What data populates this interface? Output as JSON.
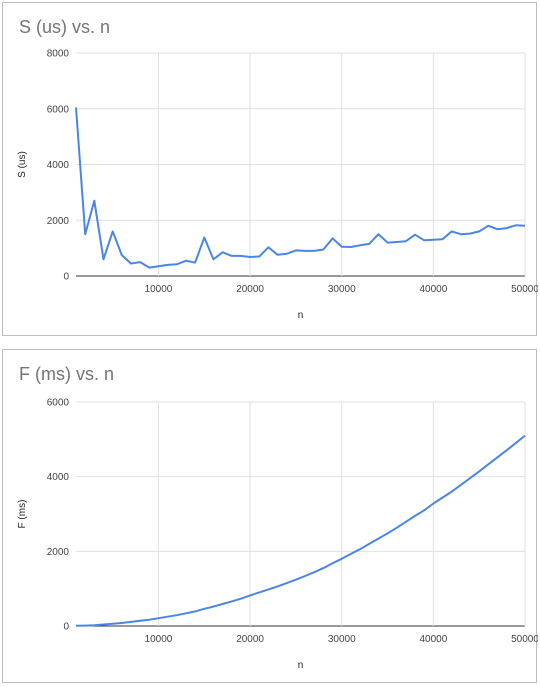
{
  "chart_data": [
    {
      "type": "line",
      "title": "S (us) vs. n",
      "xlabel": "n",
      "ylabel": "S (us)",
      "xlim": [
        1000,
        50000
      ],
      "ylim": [
        0,
        8000
      ],
      "xticks": [
        10000,
        20000,
        30000,
        40000,
        50000
      ],
      "yticks": [
        0,
        2000,
        4000,
        6000,
        8000
      ],
      "grid": true,
      "legend": "none",
      "color": "#4a86e8",
      "series": [
        {
          "x": [
            1000,
            2000,
            3000,
            4000,
            5000,
            6000,
            7000,
            8000,
            9000,
            10000,
            11000,
            12000,
            13000,
            14000,
            15000,
            16000,
            17000,
            18000,
            19000,
            20000,
            21000,
            22000,
            23000,
            24000,
            25000,
            26000,
            27000,
            28000,
            29000,
            30000,
            31000,
            32000,
            33000,
            34000,
            35000,
            36000,
            37000,
            38000,
            39000,
            40000,
            41000,
            42000,
            43000,
            44000,
            45000,
            46000,
            47000,
            48000,
            49000,
            50000
          ],
          "values": [
            6050,
            1500,
            2700,
            600,
            1600,
            750,
            450,
            500,
            300,
            350,
            400,
            420,
            550,
            480,
            1380,
            600,
            850,
            720,
            720,
            680,
            700,
            1030,
            760,
            800,
            920,
            900,
            900,
            950,
            1350,
            1050,
            1040,
            1100,
            1150,
            1500,
            1200,
            1220,
            1250,
            1480,
            1280,
            1300,
            1320,
            1600,
            1500,
            1520,
            1600,
            1800,
            1680,
            1720,
            1820,
            1800
          ]
        }
      ]
    },
    {
      "type": "line",
      "title": "F (ms) vs. n",
      "xlabel": "n",
      "ylabel": "F (ms)",
      "xlim": [
        1000,
        50000
      ],
      "ylim": [
        0,
        6000
      ],
      "xticks": [
        10000,
        20000,
        30000,
        40000,
        50000
      ],
      "yticks": [
        0,
        2000,
        4000,
        6000
      ],
      "grid": true,
      "legend": "none",
      "color": "#4a86e8",
      "series": [
        {
          "x": [
            1000,
            2000,
            3000,
            4000,
            5000,
            6000,
            7000,
            8000,
            9000,
            10000,
            11000,
            12000,
            13000,
            14000,
            15000,
            16000,
            17000,
            18000,
            19000,
            20000,
            21000,
            22000,
            23000,
            24000,
            25000,
            26000,
            27000,
            28000,
            29000,
            30000,
            31000,
            32000,
            33000,
            34000,
            35000,
            36000,
            37000,
            38000,
            39000,
            40000,
            41000,
            42000,
            43000,
            44000,
            45000,
            46000,
            47000,
            48000,
            49000,
            50000
          ],
          "values": [
            5,
            10,
            20,
            40,
            60,
            80,
            110,
            140,
            170,
            210,
            250,
            290,
            340,
            390,
            460,
            520,
            590,
            660,
            730,
            820,
            900,
            980,
            1060,
            1150,
            1240,
            1340,
            1440,
            1550,
            1680,
            1800,
            1930,
            2060,
            2200,
            2340,
            2480,
            2630,
            2790,
            2950,
            3100,
            3280,
            3440,
            3600,
            3780,
            3960,
            4140,
            4330,
            4520,
            4710,
            4900,
            5100
          ]
        }
      ]
    }
  ]
}
